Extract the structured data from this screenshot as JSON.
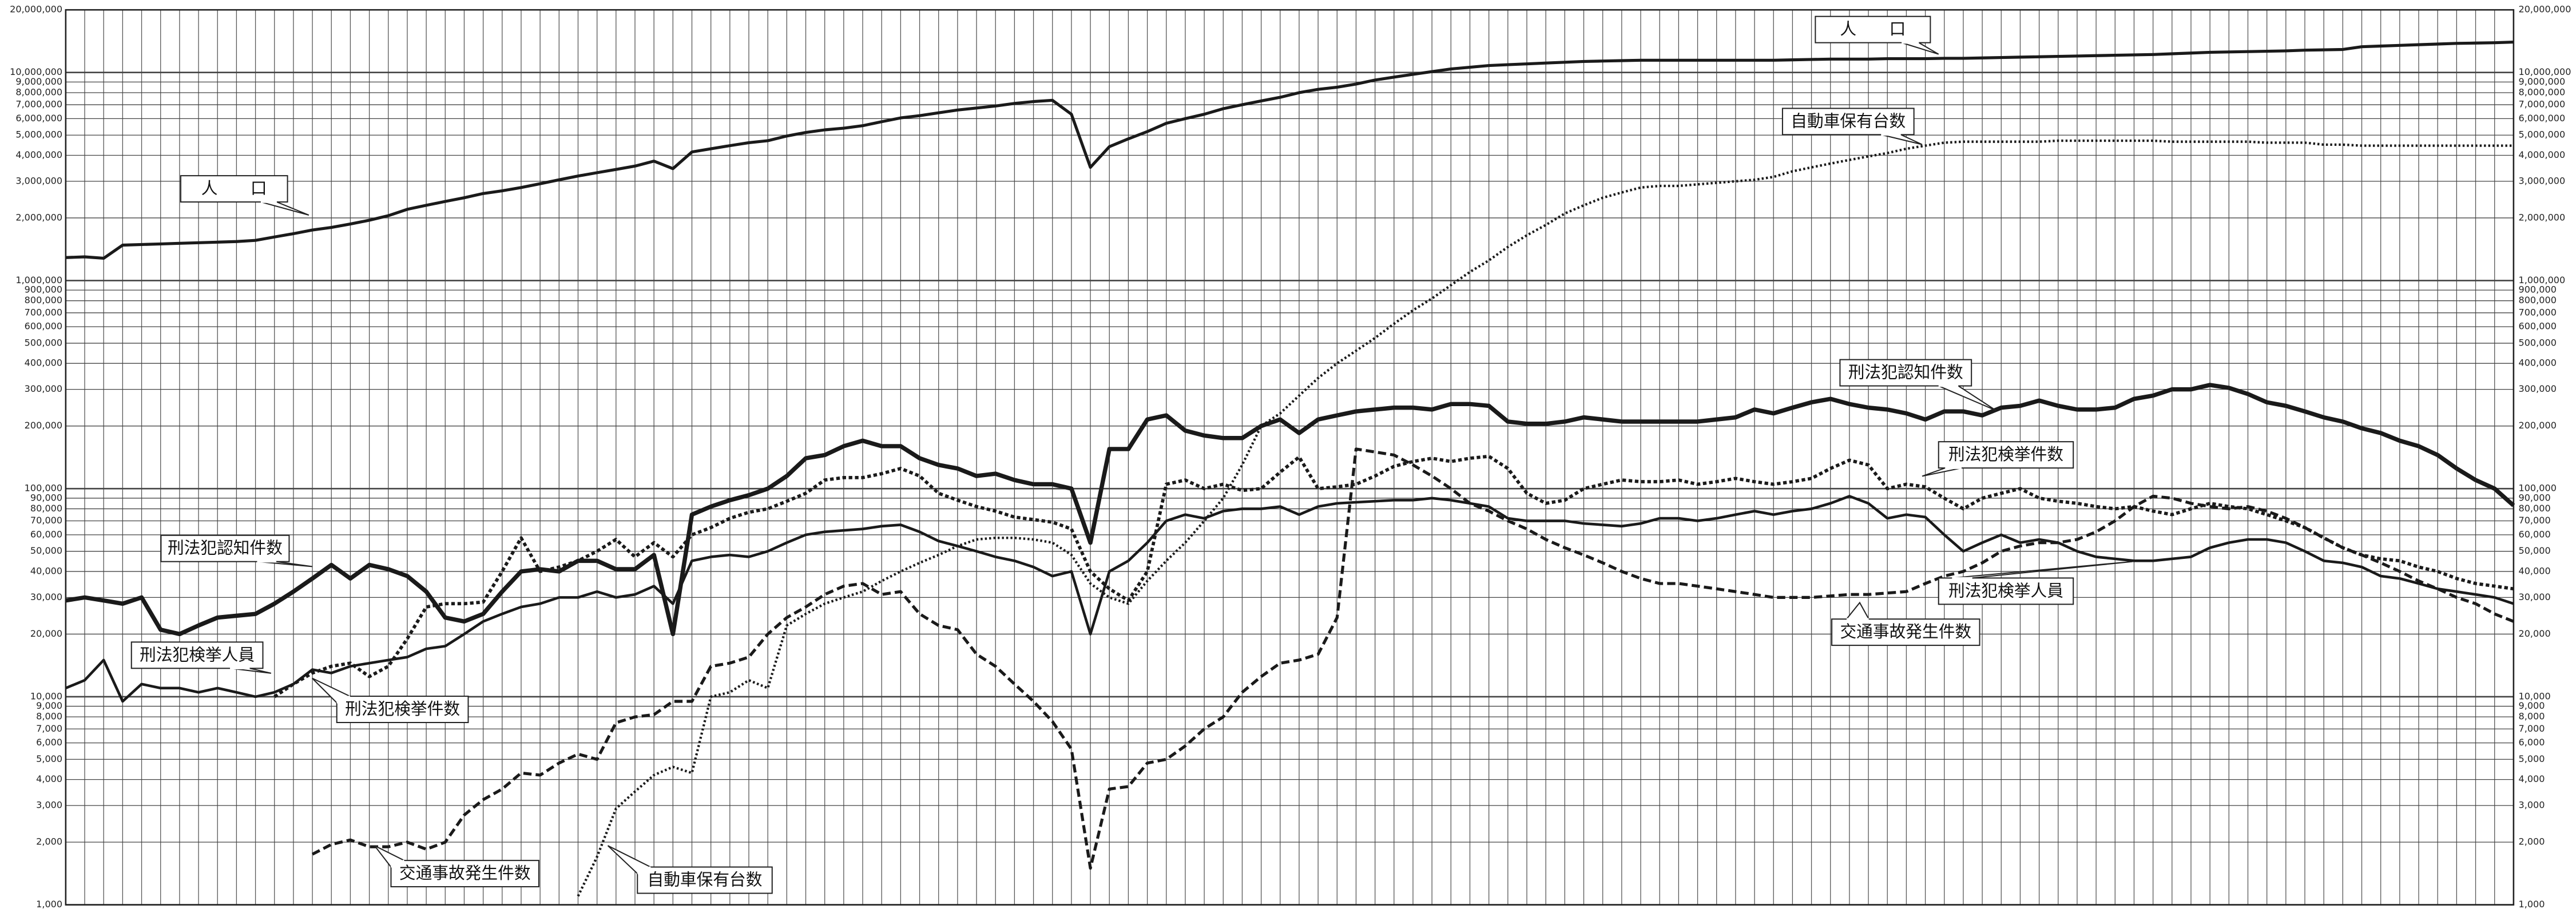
{
  "chart_data": {
    "type": "line",
    "log_y": true,
    "grid": true,
    "categories": [
      null,
      null,
      null,
      null,
      null,
      null,
      null,
      null,
      null,
      null,
      null,
      null,
      null,
      null,
      null,
      null,
      null,
      null,
      null,
      null,
      null,
      null,
      null,
      null,
      null,
      null,
      null,
      null,
      null,
      null,
      null,
      null,
      null,
      null,
      null,
      null,
      null,
      null,
      null,
      null,
      null,
      null,
      null,
      null,
      null,
      null,
      null,
      null,
      null,
      null,
      null,
      null,
      null,
      null,
      null,
      null,
      null,
      null,
      null,
      null,
      null,
      null,
      null,
      null,
      null,
      null,
      null,
      null,
      null,
      null,
      null,
      null,
      null,
      null,
      null,
      null,
      null,
      null,
      null,
      null,
      null,
      null,
      null,
      null,
      null,
      null,
      null,
      null,
      null,
      null,
      null,
      null,
      null,
      null,
      null,
      null,
      null,
      null,
      null,
      null,
      null,
      null,
      null,
      null,
      null,
      null,
      null,
      null,
      null,
      null,
      null,
      null,
      null,
      null,
      null,
      null,
      null,
      null,
      null,
      null,
      null,
      null,
      null,
      null,
      null,
      null,
      null,
      null,
      null,
      null
    ],
    "ylim": [
      1000,
      20000000
    ],
    "yticks": [
      {
        "value": 1000,
        "label": "1,000"
      },
      {
        "value": 2000,
        "label": "2,000"
      },
      {
        "value": 3000,
        "label": "3,000"
      },
      {
        "value": 4000,
        "label": "4,000"
      },
      {
        "value": 5000,
        "label": "5,000"
      },
      {
        "value": 6000,
        "label": "6,000"
      },
      {
        "value": 7000,
        "label": "7,000"
      },
      {
        "value": 8000,
        "label": "8,000"
      },
      {
        "value": 9000,
        "label": "9,000"
      },
      {
        "value": 10000,
        "label": "10,000"
      },
      {
        "value": 20000,
        "label": "20,000"
      },
      {
        "value": 30000,
        "label": "30,000"
      },
      {
        "value": 40000,
        "label": "40,000"
      },
      {
        "value": 50000,
        "label": "50,000"
      },
      {
        "value": 60000,
        "label": "60,000"
      },
      {
        "value": 70000,
        "label": "70,000"
      },
      {
        "value": 80000,
        "label": "80,000"
      },
      {
        "value": 90000,
        "label": "90,000"
      },
      {
        "value": 100000,
        "label": "100,000"
      },
      {
        "value": 200000,
        "label": "200,000"
      },
      {
        "value": 300000,
        "label": "300,000"
      },
      {
        "value": 400000,
        "label": "400,000"
      },
      {
        "value": 500000,
        "label": "500,000"
      },
      {
        "value": 600000,
        "label": "600,000"
      },
      {
        "value": 700000,
        "label": "700,000"
      },
      {
        "value": 800000,
        "label": "800,000"
      },
      {
        "value": 900000,
        "label": "900,000"
      },
      {
        "value": 1000000,
        "label": "1,000,000"
      },
      {
        "value": 2000000,
        "label": "2,000,000"
      },
      {
        "value": 3000000,
        "label": "3,000,000"
      },
      {
        "value": 4000000,
        "label": "4,000,000"
      },
      {
        "value": 5000000,
        "label": "5,000,000"
      },
      {
        "value": 6000000,
        "label": "6,000,000"
      },
      {
        "value": 7000000,
        "label": "7,000,000"
      },
      {
        "value": 8000000,
        "label": "8,000,000"
      },
      {
        "value": 9000000,
        "label": "9,000,000"
      },
      {
        "value": 10000000,
        "label": "10,000,000"
      },
      {
        "value": 20000000,
        "label": "20,000,000"
      }
    ],
    "series": [
      {
        "name": "人　　口",
        "color": "#1a1a1a",
        "style": "solid",
        "width": 1.8,
        "values": [
          1290000,
          1300000,
          1280000,
          1480000,
          1490000,
          1500000,
          1510000,
          1520000,
          1530000,
          1540000,
          1560000,
          1620000,
          1680000,
          1750000,
          1800000,
          1870000,
          1950000,
          2050000,
          2200000,
          2300000,
          2400000,
          2500000,
          2620000,
          2700000,
          2800000,
          2920000,
          3050000,
          3180000,
          3300000,
          3420000,
          3550000,
          3750000,
          3450000,
          4150000,
          4300000,
          4450000,
          4600000,
          4700000,
          4950000,
          5150000,
          5300000,
          5400000,
          5550000,
          5800000,
          6050000,
          6200000,
          6400000,
          6600000,
          6750000,
          6900000,
          7100000,
          7250000,
          7350000,
          6300000,
          3500000,
          4400000,
          4800000,
          5200000,
          5700000,
          6000000,
          6300000,
          6700000,
          7000000,
          7300000,
          7600000,
          8000000,
          8300000,
          8500000,
          8800000,
          9200000,
          9500000,
          9800000,
          10100000,
          10400000,
          10600000,
          10800000,
          10900000,
          11000000,
          11100000,
          11200000,
          11300000,
          11350000,
          11400000,
          11450000,
          11450000,
          11450000,
          11450000,
          11450000,
          11450000,
          11450000,
          11450000,
          11500000,
          11550000,
          11600000,
          11600000,
          11600000,
          11650000,
          11650000,
          11650000,
          11700000,
          11700000,
          11750000,
          11800000,
          11850000,
          11900000,
          11950000,
          12000000,
          12050000,
          12100000,
          12150000,
          12200000,
          12300000,
          12400000,
          12500000,
          12550000,
          12600000,
          12650000,
          12700000,
          12800000,
          12850000,
          12900000,
          13300000,
          13400000,
          13500000,
          13600000,
          13700000,
          13800000,
          13850000,
          13900000,
          14000000
        ]
      },
      {
        "name": "自動車保有台数",
        "color": "#1a1a1a",
        "style": "dotted",
        "width": 1.5,
        "values": [
          null,
          null,
          null,
          null,
          null,
          null,
          null,
          null,
          null,
          null,
          null,
          null,
          null,
          null,
          null,
          null,
          null,
          null,
          null,
          null,
          null,
          null,
          null,
          null,
          null,
          null,
          null,
          1100,
          1700,
          2900,
          3500,
          4200,
          4600,
          4300,
          10000,
          10500,
          12000,
          11000,
          22000,
          25000,
          28000,
          30000,
          32000,
          36000,
          40000,
          44000,
          48000,
          53000,
          57000,
          58000,
          58000,
          57000,
          55000,
          48000,
          35000,
          30000,
          28000,
          36000,
          45000,
          55000,
          70000,
          90000,
          130000,
          200000,
          230000,
          280000,
          340000,
          400000,
          460000,
          530000,
          620000,
          720000,
          820000,
          950000,
          1100000,
          1250000,
          1450000,
          1650000,
          1850000,
          2100000,
          2300000,
          2500000,
          2650000,
          2800000,
          2850000,
          2850000,
          2900000,
          2950000,
          3000000,
          3050000,
          3150000,
          3350000,
          3500000,
          3650000,
          3800000,
          3950000,
          4100000,
          4300000,
          4450000,
          4600000,
          4650000,
          4650000,
          4650000,
          4650000,
          4650000,
          4700000,
          4700000,
          4700000,
          4700000,
          4700000,
          4700000,
          4650000,
          4650000,
          4650000,
          4650000,
          4650000,
          4600000,
          4600000,
          4600000,
          4500000,
          4500000,
          4450000,
          4450000,
          4450000,
          4450000,
          4450000,
          4450000,
          4450000,
          4450000,
          4450000
        ]
      },
      {
        "name": "刑法犯認知件数",
        "color": "#1a1a1a",
        "style": "solid",
        "width": 2.6,
        "values": [
          29000,
          30000,
          29000,
          28000,
          30000,
          21000,
          20000,
          22000,
          24000,
          24500,
          25000,
          28000,
          32000,
          37000,
          43000,
          37000,
          43000,
          41000,
          38000,
          32000,
          24000,
          23000,
          25000,
          32000,
          40000,
          41000,
          40000,
          45000,
          45000,
          41000,
          41000,
          48000,
          20000,
          75000,
          82000,
          88000,
          93000,
          100000,
          115000,
          140000,
          145000,
          160000,
          170000,
          160000,
          160000,
          140000,
          130000,
          125000,
          115000,
          118000,
          110000,
          105000,
          105000,
          100000,
          55000,
          155000,
          155000,
          215000,
          225000,
          190000,
          180000,
          175000,
          175000,
          200000,
          215000,
          185000,
          215000,
          225000,
          235000,
          240000,
          245000,
          245000,
          240000,
          255000,
          255000,
          250000,
          210000,
          205000,
          205000,
          210000,
          220000,
          215000,
          210000,
          210000,
          210000,
          210000,
          210000,
          215000,
          220000,
          240000,
          230000,
          245000,
          260000,
          270000,
          255000,
          245000,
          240000,
          230000,
          215000,
          235000,
          235000,
          225000,
          245000,
          250000,
          265000,
          250000,
          240000,
          240000,
          245000,
          270000,
          280000,
          300000,
          300000,
          315000,
          305000,
          285000,
          260000,
          250000,
          235000,
          220000,
          210000,
          195000,
          185000,
          170000,
          160000,
          145000,
          125000,
          110000,
          100000,
          83000
        ]
      },
      {
        "name": "刑法犯検挙件数",
        "color": "#1a1a1a",
        "style": "dashdot",
        "width": 2,
        "values": [
          null,
          null,
          null,
          null,
          null,
          null,
          null,
          null,
          null,
          null,
          null,
          10000,
          11500,
          13000,
          14000,
          14500,
          12500,
          14000,
          19000,
          27000,
          28000,
          28000,
          28500,
          40000,
          58000,
          40000,
          42000,
          45000,
          50000,
          57000,
          47000,
          55000,
          47000,
          60000,
          65000,
          72000,
          77000,
          80000,
          87000,
          95000,
          110000,
          113000,
          113000,
          118000,
          125000,
          115000,
          95000,
          88000,
          82000,
          78000,
          73000,
          71000,
          69000,
          64000,
          40000,
          33000,
          29000,
          40000,
          105000,
          110000,
          100000,
          105000,
          98000,
          100000,
          120000,
          142000,
          100000,
          102000,
          105000,
          115000,
          128000,
          135000,
          140000,
          135000,
          140000,
          143000,
          125000,
          95000,
          85000,
          88000,
          100000,
          105000,
          110000,
          108000,
          108000,
          110000,
          105000,
          108000,
          112000,
          108000,
          105000,
          108000,
          112000,
          125000,
          137000,
          130000,
          100000,
          105000,
          102000,
          90000,
          80000,
          90000,
          95000,
          100000,
          90000,
          87000,
          85000,
          82000,
          80000,
          82000,
          78000,
          75000,
          80000,
          85000,
          82000,
          80000,
          75000,
          70000,
          65000,
          58000,
          52000,
          48000,
          46000,
          45000,
          42000,
          40000,
          37000,
          35000,
          34000,
          33000
        ]
      },
      {
        "name": "刑法犯検挙人員",
        "color": "#1a1a1a",
        "style": "solid",
        "width": 1.6,
        "values": [
          11000,
          12000,
          15000,
          9500,
          11500,
          11000,
          11000,
          10500,
          11000,
          10500,
          10000,
          10500,
          11500,
          13500,
          13000,
          14000,
          14500,
          15000,
          15500,
          17000,
          17500,
          20000,
          23000,
          25000,
          27000,
          28000,
          30000,
          30000,
          32000,
          30000,
          31000,
          34000,
          28000,
          45000,
          47000,
          48000,
          47000,
          50000,
          55000,
          60000,
          62000,
          63000,
          64000,
          66000,
          67000,
          62000,
          56000,
          53000,
          50000,
          47000,
          45000,
          42000,
          38000,
          40000,
          20000,
          40000,
          45000,
          55000,
          70000,
          75000,
          72000,
          78000,
          80000,
          80000,
          82000,
          75000,
          82000,
          85000,
          86000,
          87000,
          88000,
          88000,
          90000,
          88000,
          85000,
          82000,
          72000,
          70000,
          70000,
          70000,
          68000,
          67000,
          66000,
          68000,
          72000,
          72000,
          70000,
          72000,
          75000,
          78000,
          75000,
          78000,
          80000,
          85000,
          92000,
          85000,
          72000,
          75000,
          73000,
          60000,
          50000,
          55000,
          60000,
          55000,
          57000,
          55000,
          50000,
          47000,
          46000,
          45000,
          45000,
          46000,
          47000,
          52000,
          55000,
          57000,
          57000,
          55000,
          50000,
          45000,
          44000,
          42000,
          38000,
          37000,
          35000,
          33000,
          32000,
          31000,
          30000,
          28000
        ]
      },
      {
        "name": "交通事故発生件数",
        "color": "#1a1a1a",
        "style": "dashed",
        "width": 1.8,
        "values": [
          null,
          null,
          null,
          null,
          null,
          null,
          null,
          null,
          null,
          null,
          null,
          null,
          null,
          1750,
          1950,
          2050,
          1900,
          1900,
          2000,
          1850,
          2000,
          2700,
          3200,
          3600,
          4300,
          4200,
          4800,
          5300,
          5000,
          7500,
          8000,
          8200,
          9500,
          9500,
          14000,
          14500,
          15500,
          20000,
          24000,
          27000,
          31000,
          34000,
          35000,
          31000,
          32000,
          25000,
          22000,
          21000,
          16000,
          14000,
          11500,
          9500,
          7600,
          5600,
          1500,
          3600,
          3700,
          4800,
          5000,
          5800,
          7000,
          8000,
          10500,
          12500,
          14500,
          15000,
          16000,
          24000,
          155000,
          150000,
          145000,
          130000,
          115000,
          100000,
          85000,
          78000,
          70000,
          64000,
          57000,
          52000,
          48000,
          44000,
          40000,
          37000,
          35000,
          35000,
          34000,
          33000,
          32000,
          31000,
          30000,
          30000,
          30000,
          30500,
          31000,
          31000,
          31500,
          32000,
          35000,
          38000,
          40000,
          44000,
          50000,
          53000,
          55000,
          55000,
          57000,
          62000,
          70000,
          82000,
          92000,
          90000,
          85000,
          82000,
          80000,
          82000,
          78000,
          72000,
          65000,
          58000,
          52000,
          48000,
          44000,
          40000,
          36000,
          33000,
          30000,
          28000,
          25000,
          23000
        ]
      }
    ]
  }
}
